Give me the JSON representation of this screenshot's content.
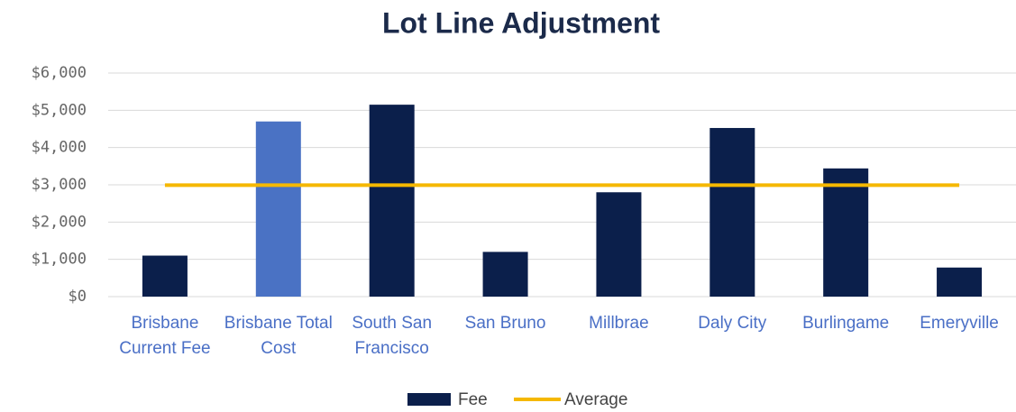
{
  "chart_data": {
    "type": "bar",
    "title": "Lot Line Adjustment",
    "categories": [
      "Brisbane Current Fee",
      "Brisbane Total Cost",
      "South San Francisco",
      "San Bruno",
      "Millbrae",
      "Daly City",
      "Burlingame",
      "Emeryville"
    ],
    "series": [
      {
        "name": "Fee",
        "type": "bar",
        "color": "#0b1f4b",
        "colors": [
          "#0b1f4b",
          "#4a72c4",
          "#0b1f4b",
          "#0b1f4b",
          "#0b1f4b",
          "#0b1f4b",
          "#0b1f4b",
          "#0b1f4b"
        ],
        "values": [
          1100,
          4700,
          5150,
          1200,
          2800,
          4525,
          3440,
          780
        ]
      },
      {
        "name": "Average",
        "type": "line",
        "color": "#f5b800",
        "values": [
          2990,
          2990,
          2990,
          2990,
          2990,
          2990,
          2990,
          2990
        ]
      }
    ],
    "ylim": [
      0,
      6000
    ],
    "yticks": [
      {
        "value": 0,
        "label": "$0"
      },
      {
        "value": 1000,
        "label": "$1,000"
      },
      {
        "value": 2000,
        "label": "$2,000"
      },
      {
        "value": 3000,
        "label": "$3,000"
      },
      {
        "value": 4000,
        "label": "$4,000"
      },
      {
        "value": 5000,
        "label": "$5,000"
      },
      {
        "value": 6000,
        "label": "$6,000"
      }
    ],
    "grid": true,
    "legend": "bottom"
  }
}
